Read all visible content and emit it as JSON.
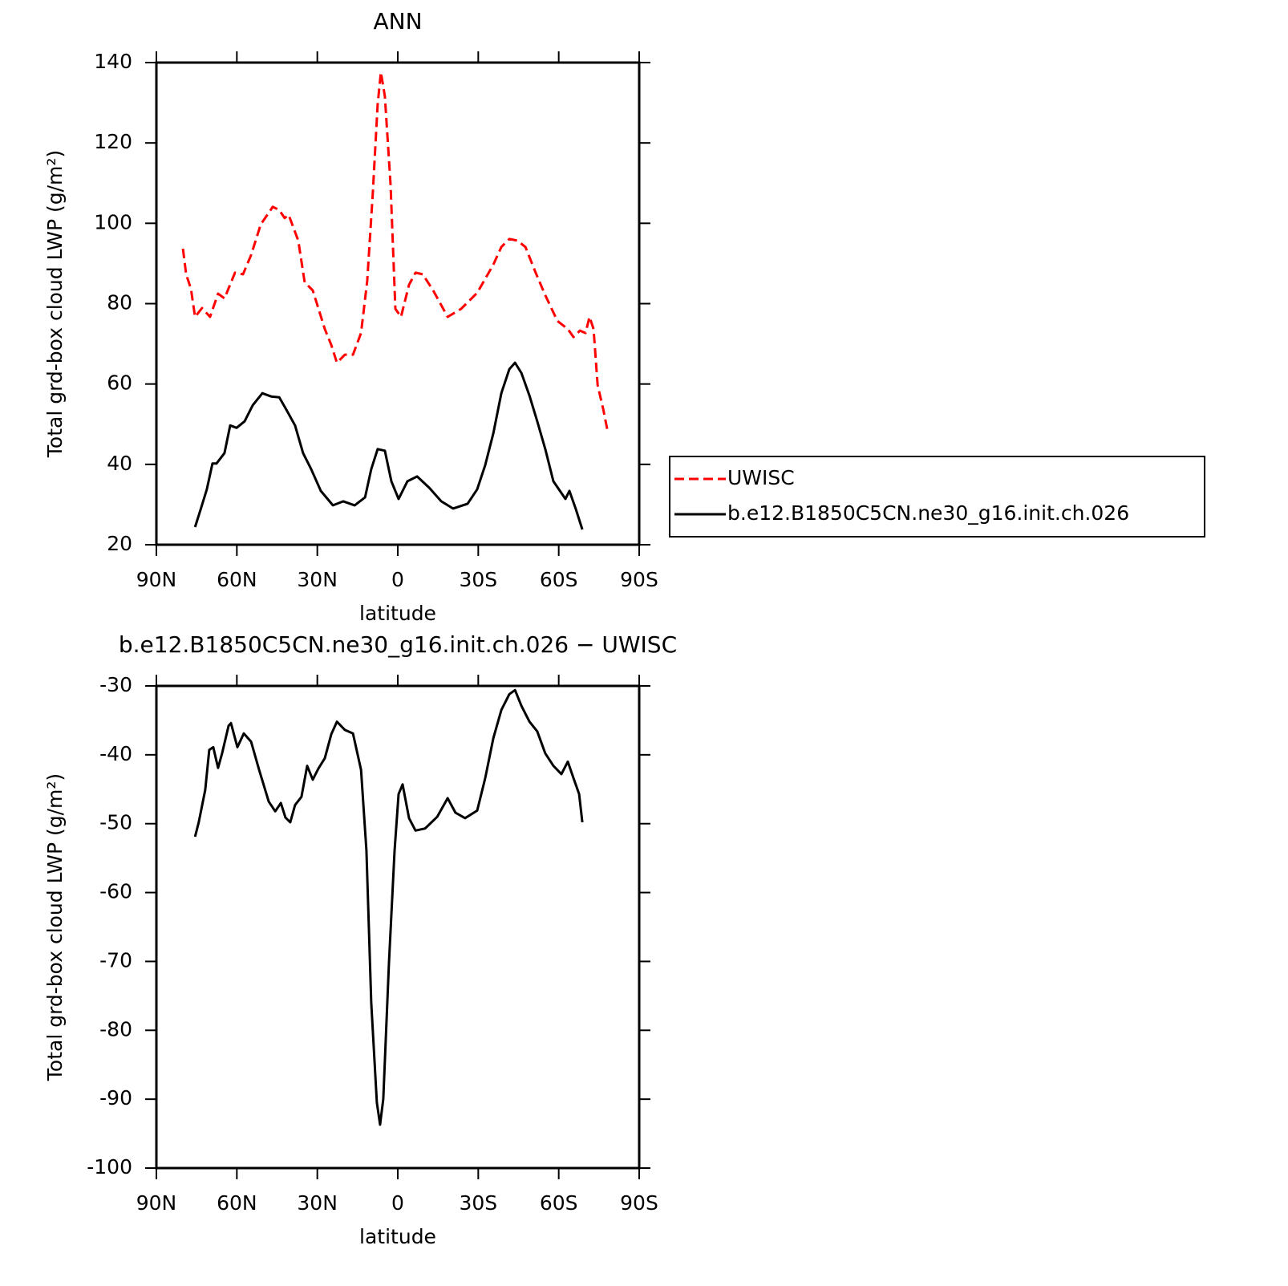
{
  "chart_data": [
    {
      "type": "line",
      "title": "ANN",
      "xlabel": "latitude",
      "ylabel": "Total grd-box cloud LWP (g/m²)",
      "xlim": [
        90,
        -90
      ],
      "xticks": [
        {
          "value": 90,
          "label": "90N"
        },
        {
          "value": 60,
          "label": "60N"
        },
        {
          "value": 30,
          "label": "30N"
        },
        0,
        {
          "value": -30,
          "label": "30S"
        },
        {
          "value": -60,
          "label": "60S"
        },
        {
          "value": -90,
          "label": "90S"
        }
      ],
      "ylim": [
        20,
        140
      ],
      "yticks": [
        20,
        40,
        60,
        80,
        100,
        120,
        140
      ],
      "legend": "outside-right",
      "series": [
        {
          "name": "UWISC",
          "color": "#ff0000",
          "dash": true,
          "x": [
            80.1,
            78.9,
            77.1,
            75.6,
            73,
            70,
            67,
            64.6,
            60.7,
            57.7,
            54.7,
            51.1,
            46.6,
            44.2,
            42.2,
            40.7,
            37.1,
            34.7,
            31.7,
            27.2,
            24.8,
            22.7,
            19.7,
            16.7,
            13.7,
            11.4,
            9.3,
            7.5,
            6.3,
            4.8,
            2.7,
            0.9,
            -1.2,
            -4.2,
            -6.6,
            -9.3,
            -13.2,
            -18.6,
            -23.6,
            -29.6,
            -35.6,
            -38.6,
            -41.6,
            -44.6,
            -47.6,
            -51.4,
            -55,
            -59.5,
            -63.4,
            -65.5,
            -67.9,
            -70,
            -71.5,
            -73,
            -74.5,
            -76.6,
            -78.1
          ],
          "values": [
            93.7,
            87.3,
            83.7,
            76.7,
            78.9,
            76.7,
            82.5,
            81.3,
            87.7,
            87.3,
            92.1,
            99.7,
            104.1,
            103.3,
            101.3,
            102.1,
            95.7,
            85.3,
            83.3,
            73.7,
            69.7,
            65.3,
            67.3,
            67.3,
            72.7,
            85.7,
            107.7,
            129.6,
            137.6,
            131.6,
            109.6,
            78.7,
            76.7,
            84.7,
            87.7,
            87.3,
            83.3,
            76.7,
            78.7,
            82.7,
            89.7,
            94.1,
            96.1,
            95.7,
            94.1,
            87.7,
            82.1,
            75.7,
            73.7,
            71.7,
            73.3,
            72.7,
            76.7,
            73.7,
            59.7,
            53.7,
            48.7
          ]
        },
        {
          "name": "b.e12.B1850C5CN.ne30_g16.init.ch.026",
          "color": "#000000",
          "dash": false,
          "x": [
            75.6,
            73.5,
            71.2,
            69.1,
            67.6,
            64.6,
            62.5,
            60.1,
            57.1,
            54.1,
            50.5,
            47.2,
            44.2,
            41.3,
            38.3,
            35.3,
            32.3,
            28.7,
            24.2,
            20.3,
            16.1,
            12.2,
            9.9,
            7.5,
            4.8,
            2.4,
            -0.3,
            -3.6,
            -7.2,
            -11.7,
            -16.2,
            -20.6,
            -26,
            -29.6,
            -32.6,
            -35.6,
            -38.6,
            -41.6,
            -43.7,
            -46.1,
            -49.1,
            -52,
            -55,
            -58,
            -62.5,
            -64,
            -66.4,
            -68.8
          ],
          "values": [
            24.4,
            28.8,
            33.8,
            40.2,
            40.2,
            42.8,
            49.7,
            49.1,
            50.7,
            54.7,
            57.7,
            56.9,
            56.7,
            53.3,
            49.7,
            42.8,
            38.8,
            33.4,
            29.8,
            30.8,
            29.8,
            31.8,
            38.8,
            43.8,
            43.4,
            35.8,
            31.4,
            35.8,
            37,
            34.2,
            30.8,
            29,
            30.2,
            33.8,
            39.8,
            47.7,
            57.7,
            63.7,
            65.3,
            62.7,
            57.1,
            50.7,
            43.8,
            35.8,
            31.4,
            33.4,
            28.8,
            23.8
          ]
        }
      ]
    },
    {
      "type": "line",
      "title": "b.e12.B1850C5CN.ne30_g16.init.ch.026 − UWISC",
      "xlabel": "latitude",
      "ylabel": "Total grd-box cloud LWP (g/m²)",
      "xlim": [
        90,
        -90
      ],
      "xticks": [
        {
          "value": 90,
          "label": "90N"
        },
        {
          "value": 60,
          "label": "60N"
        },
        {
          "value": 30,
          "label": "30N"
        },
        0,
        {
          "value": -30,
          "label": "30S"
        },
        {
          "value": -60,
          "label": "60S"
        },
        {
          "value": -90,
          "label": "90S"
        }
      ],
      "ylim": [
        -100,
        -30
      ],
      "yticks": [
        -100,
        -90,
        -80,
        -70,
        -60,
        -50,
        -40,
        -30
      ],
      "series": [
        {
          "color": "#000000",
          "dash": false,
          "x": [
            75.6,
            74.2,
            71.8,
            70.3,
            68.8,
            67,
            65.5,
            63.1,
            62.2,
            59.8,
            57.4,
            54.7,
            51.7,
            48.1,
            45.7,
            43.6,
            41.9,
            40.1,
            38.3,
            35.9,
            33.8,
            31.7,
            29.6,
            27.2,
            24.8,
            22.7,
            19.7,
            16.7,
            13.7,
            11.7,
            9.9,
            7.8,
            6.6,
            5.4,
            3.3,
            1.2,
            -0.3,
            -1.8,
            -4.2,
            -6.6,
            -10.2,
            -14.7,
            -18.6,
            -21.5,
            -25.1,
            -29.6,
            -32.6,
            -35.6,
            -38.6,
            -41.6,
            -43.7,
            -46.1,
            -49.1,
            -52,
            -55,
            -58,
            -61,
            -63.4,
            -65.5,
            -67.6,
            -68.8
          ],
          "values": [
            -51.9,
            -49.8,
            -45.1,
            -39.3,
            -38.9,
            -41.9,
            -39.8,
            -35.8,
            -35.4,
            -38.9,
            -36.9,
            -38.1,
            -42.2,
            -46.8,
            -48.2,
            -47,
            -49.1,
            -49.8,
            -47.3,
            -46.1,
            -41.6,
            -43.6,
            -42,
            -40.5,
            -37,
            -35.2,
            -36.4,
            -36.9,
            -42.2,
            -53.9,
            -76,
            -90.5,
            -93.7,
            -90,
            -70.2,
            -53.9,
            -45.7,
            -44.3,
            -49.2,
            -51,
            -50.7,
            -49,
            -46.3,
            -48.4,
            -49.2,
            -48.1,
            -43.4,
            -37.6,
            -33.5,
            -31.2,
            -30.6,
            -32.9,
            -35.2,
            -36.6,
            -39.8,
            -41.6,
            -42.8,
            -41,
            -43.4,
            -45.7,
            -49.8
          ]
        }
      ]
    }
  ]
}
